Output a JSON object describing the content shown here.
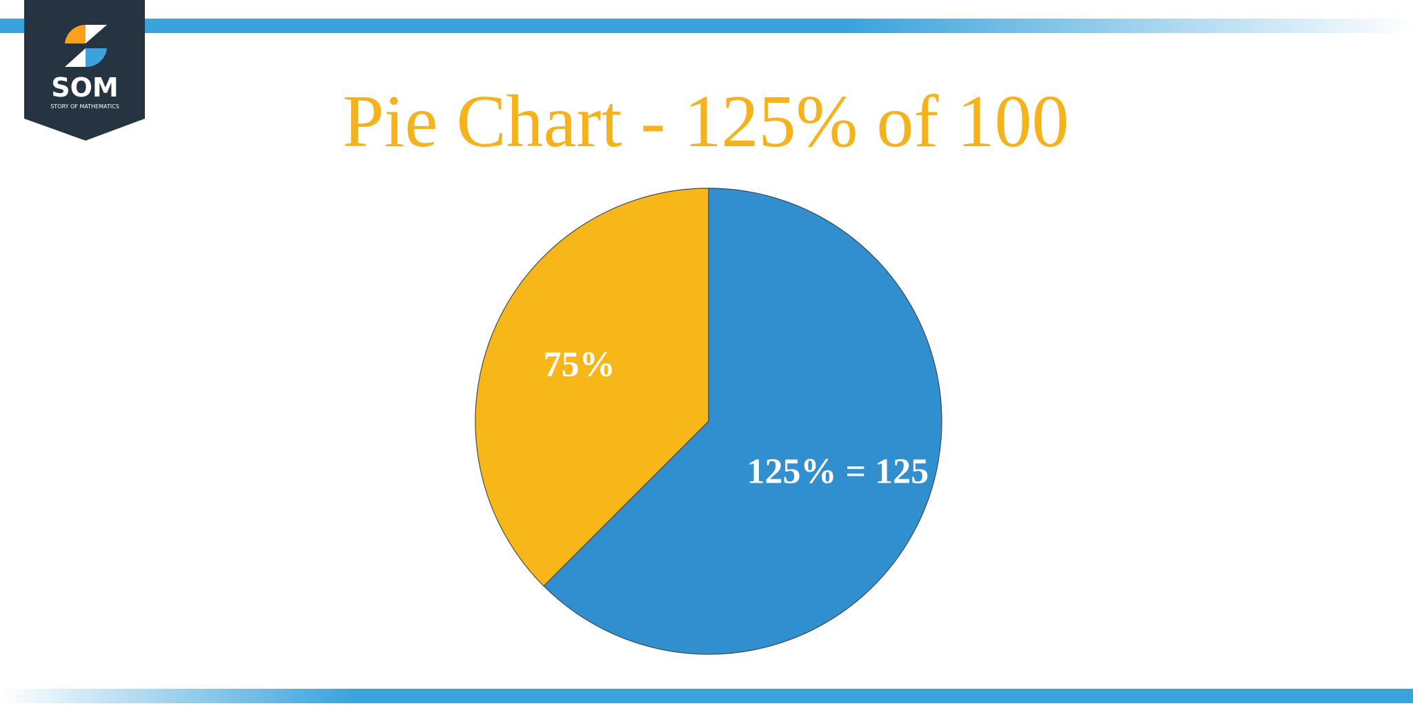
{
  "logo": {
    "mark": "SOM",
    "tagline": "STORY OF MATHEMATICS"
  },
  "chart_data": {
    "type": "pie",
    "title": "Pie Chart - 125% of 100",
    "values": [
      125,
      75
    ],
    "value_labels": [
      "125% = 125",
      "75%"
    ],
    "colors": [
      "#318ecf",
      "#f8b719"
    ]
  }
}
